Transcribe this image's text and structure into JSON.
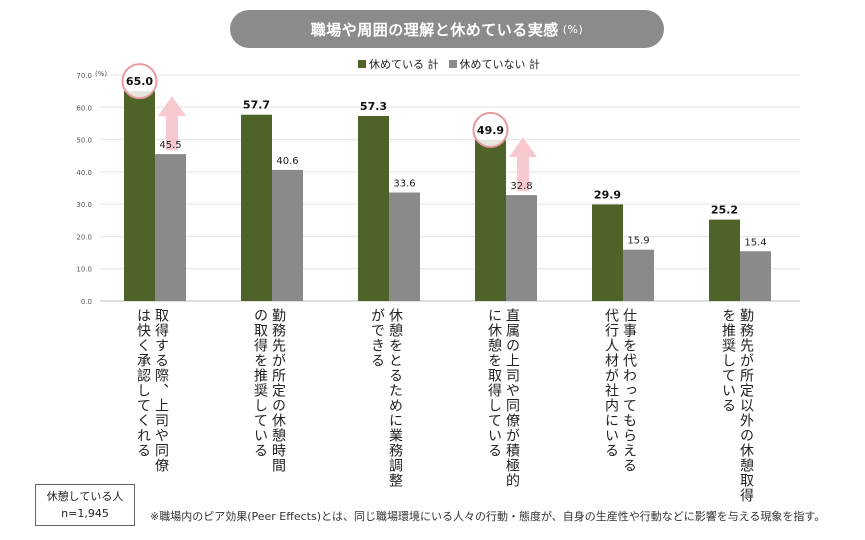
{
  "header": {
    "title": "職場や周囲の理解と休めている実感",
    "unit": "(%)"
  },
  "legend": [
    {
      "label": "休めている 計",
      "color": "#4e6328"
    },
    {
      "label": "休めていない 計",
      "color": "#8a8a8a"
    }
  ],
  "y_unit_label": "(%)",
  "sample": {
    "line1": "休憩している人",
    "line2": "n=1,945"
  },
  "footnote": "※職場内のピア効果(Peer Effects)とは、同じ職場環境にいる人々の行動・態度が、自身の生産性や行動などに影響を与える現象を指す。",
  "chart_data": {
    "type": "bar",
    "categories": [
      "取得する際、上司や同僚は快く承認してくれる",
      "勤務先が所定の休憩時間の取得を推奨している",
      "休憩をとるために業務調整ができる",
      "直属の上司や同僚が積極的に休憩を取得している",
      "仕事を代わってもらえる代行人材が社内にいる",
      "勤務先が所定以外の休憩取得を推奨している"
    ],
    "category_lines": [
      [
        "取得する際、上司や同僚",
        "は快く承認してくれる"
      ],
      [
        "勤務先が所定の休憩時間",
        "の取得を推奨している"
      ],
      [
        "休憩をとるために業務調整",
        "ができる"
      ],
      [
        "直属の上司や同僚が積極的",
        "に休憩を取得している"
      ],
      [
        "仕事を代わってもらえる",
        "代行人材が社内にいる"
      ],
      [
        "勤務先が所定以外の休憩取得",
        "を推奨している"
      ]
    ],
    "series": [
      {
        "name": "休めている 計",
        "values": [
          65.0,
          57.7,
          57.3,
          49.9,
          29.9,
          25.2
        ],
        "color": "#4e6328"
      },
      {
        "name": "休めていない 計",
        "values": [
          45.5,
          40.6,
          33.6,
          32.8,
          15.9,
          15.4
        ],
        "color": "#8a8a8a"
      }
    ],
    "ylim": [
      0,
      70
    ],
    "yticks": [
      "0.0",
      "10.0",
      "20.0",
      "30.0",
      "40.0",
      "50.0",
      "60.0",
      "70.0"
    ],
    "highlight_categories": [
      0,
      3
    ],
    "grid": true
  }
}
